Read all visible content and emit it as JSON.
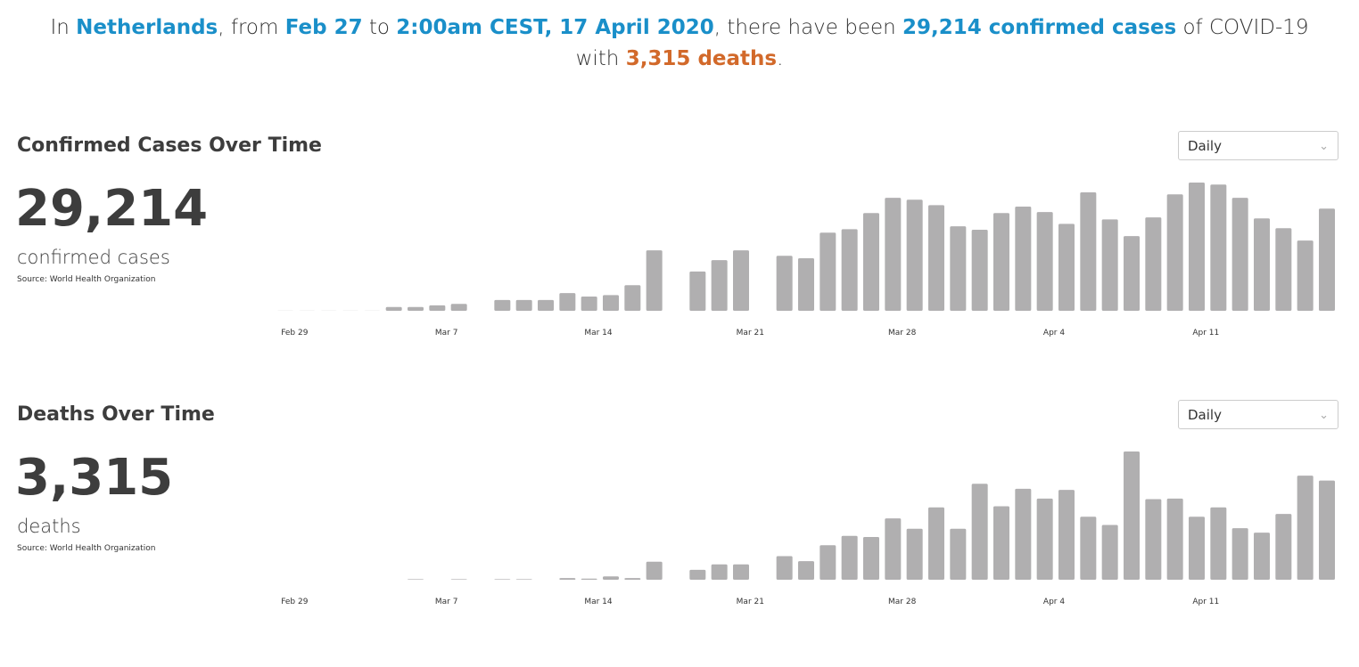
{
  "header": {
    "line1": [
      {
        "text": "In ",
        "tone": "plain"
      },
      {
        "text": "Netherlands",
        "tone": "blue"
      },
      {
        "text": ", from ",
        "tone": "plain"
      },
      {
        "text": "Feb 27",
        "tone": "blue"
      },
      {
        "text": " to ",
        "tone": "plain"
      },
      {
        "text": "2:00am CEST, 17 April 2020",
        "tone": "blue"
      },
      {
        "text": ", there have been ",
        "tone": "plain"
      },
      {
        "text": "29,214 confirmed cases",
        "tone": "blue"
      },
      {
        "text": " of COVID-19",
        "tone": "plain"
      }
    ],
    "line2": [
      {
        "text": "with ",
        "tone": "plain"
      },
      {
        "text": "3,315 deaths",
        "tone": "orange"
      },
      {
        "text": ".",
        "tone": "plain"
      }
    ]
  },
  "panels": [
    {
      "dropdown": "Daily",
      "total": "29,214",
      "label": "confirmed cases",
      "source": "Source: World Health Organization"
    },
    {
      "dropdown": "Daily",
      "total": "3,315",
      "label": "deaths",
      "source": "Source: World Health Organization"
    }
  ],
  "chart_data": [
    {
      "type": "bar",
      "title": "Confirmed Cases Over Time",
      "color": "#b0afb0",
      "categories": [
        null,
        "Feb 29",
        null,
        null,
        null,
        null,
        null,
        null,
        "Mar 7",
        null,
        null,
        null,
        null,
        null,
        null,
        "Mar 14",
        null,
        null,
        null,
        null,
        null,
        null,
        "Mar 21",
        null,
        null,
        null,
        null,
        null,
        null,
        "Mar 28",
        null,
        null,
        null,
        null,
        null,
        null,
        "Apr 4",
        null,
        null,
        null,
        null,
        null,
        null,
        "Apr 11",
        null,
        null,
        null,
        null,
        null
      ],
      "values": [
        1,
        1,
        1,
        1,
        1,
        38,
        38,
        55,
        70,
        0,
        110,
        110,
        110,
        180,
        145,
        160,
        260,
        615,
        0,
        400,
        515,
        615,
        0,
        560,
        535,
        795,
        830,
        995,
        1150,
        1130,
        1075,
        860,
        825,
        995,
        1060,
        1005,
        885,
        1205,
        930,
        760,
        950,
        1185,
        1305,
        1285,
        1150,
        940,
        840,
        715,
        1040
      ]
    },
    {
      "type": "bar",
      "title": "Deaths Over Time",
      "color": "#b0afb0",
      "categories": [
        null,
        "Feb 29",
        null,
        null,
        null,
        null,
        null,
        null,
        "Mar 7",
        null,
        null,
        null,
        null,
        null,
        null,
        "Mar 14",
        null,
        null,
        null,
        null,
        null,
        null,
        "Mar 21",
        null,
        null,
        null,
        null,
        null,
        null,
        "Mar 28",
        null,
        null,
        null,
        null,
        null,
        null,
        "Apr 4",
        null,
        null,
        null,
        null,
        null,
        null,
        "Apr 11",
        null,
        null,
        null,
        null,
        null
      ],
      "values": [
        0,
        0,
        0,
        0,
        0,
        0,
        1,
        0,
        1,
        0,
        1,
        1,
        0,
        3,
        2,
        6,
        3,
        33,
        0,
        18,
        28,
        28,
        0,
        43,
        34,
        63,
        80,
        78,
        112,
        93,
        132,
        93,
        175,
        134,
        166,
        148,
        164,
        115,
        100,
        234,
        147,
        148,
        115,
        132,
        94,
        86,
        120,
        190,
        181
      ]
    }
  ]
}
